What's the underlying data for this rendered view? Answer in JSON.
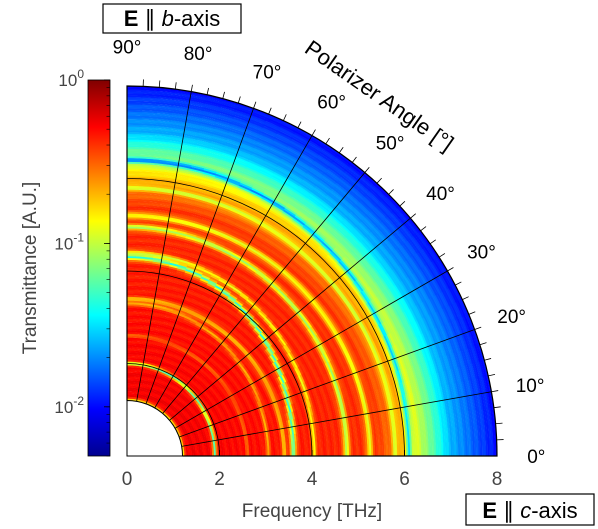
{
  "chart_data": {
    "type": "heatmap",
    "projection": "polar-quarter",
    "title": "",
    "radial_axis": {
      "label": "Frequency [THz]",
      "range": [
        0,
        8
      ],
      "ticks": [
        "0",
        "2",
        "4",
        "6",
        "8"
      ],
      "inner_hole_radius": 1.2
    },
    "angular_axis": {
      "label": "Polarizer Angle [°]",
      "range": [
        0,
        90
      ],
      "ticks": [
        "0°",
        "10°",
        "20°",
        "30°",
        "40°",
        "50°",
        "60°",
        "70°",
        "80°",
        "90°"
      ],
      "grid": true
    },
    "endpoint_labels": {
      "top": {
        "bold": "E",
        "sym": " ∥ ",
        "italic": "b",
        "rest": "-axis"
      },
      "right": {
        "bold": "E",
        "sym": " ∥ ",
        "italic": "c",
        "rest": "-axis"
      }
    },
    "colorbar": {
      "label": "Transmittance [A.U.]",
      "scale": "log",
      "range": [
        0.005,
        1
      ],
      "ticks": [
        {
          "value": 1,
          "mantissa": "10",
          "exp": "0"
        },
        {
          "value": 0.1,
          "mantissa": "10",
          "exp": "-1"
        },
        {
          "value": 0.01,
          "mantissa": "10",
          "exp": "-2"
        }
      ],
      "colormap": "jet"
    },
    "absorption_lines": [
      {
        "f0": 1.2,
        "f90": 1.2,
        "width": 0.06,
        "depth": 0.75
      },
      {
        "f0": 1.9,
        "f90": 2.0,
        "width": 0.05,
        "depth": 0.9
      },
      {
        "f0": 2.6,
        "f90": 2.6,
        "width": 0.04,
        "depth": 0.4
      },
      {
        "f0": 3.05,
        "f90": 3.3,
        "width": 0.05,
        "depth": 0.55
      },
      {
        "f0": 3.4,
        "f90": 3.4,
        "width": 0.06,
        "depth": 0.6
      },
      {
        "f0": 3.6,
        "f90": 4.3,
        "width": 0.08,
        "depth": 0.9
      },
      {
        "f0": 4.05,
        "f90": 4.4,
        "width": 0.06,
        "depth": 0.7
      },
      {
        "f0": 4.75,
        "f90": 4.95,
        "width": 0.08,
        "depth": 0.8
      },
      {
        "f0": 5.25,
        "f90": 5.2,
        "width": 0.08,
        "depth": 0.7
      },
      {
        "f0": 5.8,
        "f90": 5.8,
        "width": 0.06,
        "depth": 0.6
      },
      {
        "f0": 6.1,
        "f90": 6.4,
        "width": 0.08,
        "depth": 0.8
      }
    ],
    "baseline": [
      {
        "f": 0,
        "t": 0.6
      },
      {
        "f": 5.4,
        "t": 0.4
      },
      {
        "f": 6.0,
        "t": 0.2
      },
      {
        "f": 6.6,
        "t": 0.06
      },
      {
        "f": 7.0,
        "t": 0.025
      },
      {
        "f": 8.0,
        "t": 0.01
      }
    ]
  }
}
